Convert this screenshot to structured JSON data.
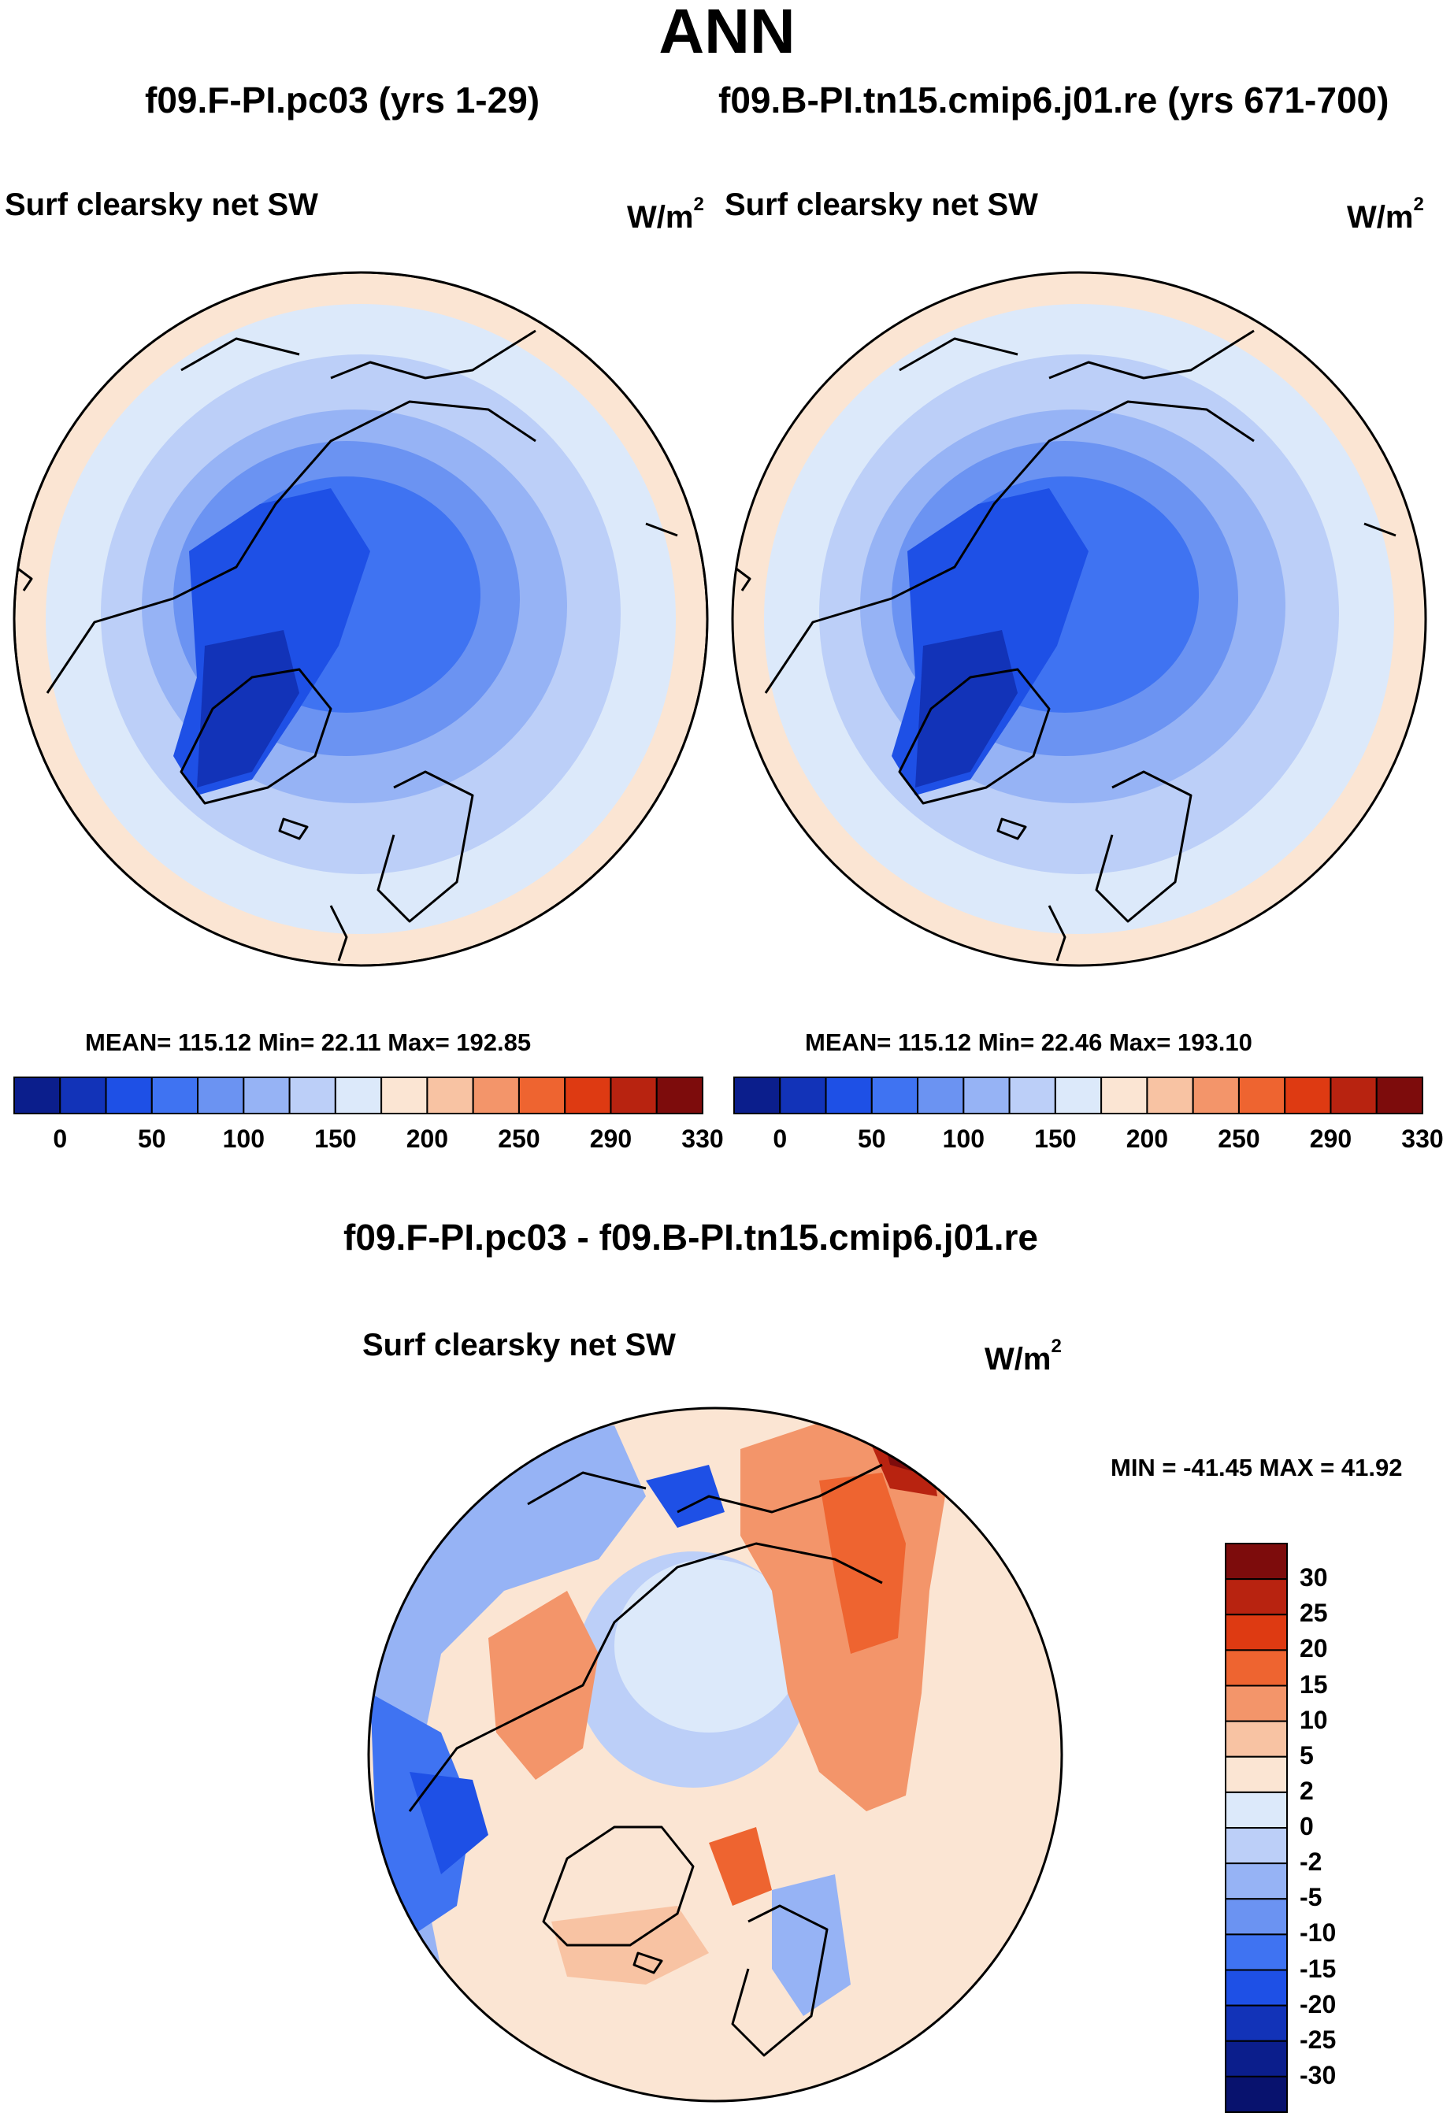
{
  "figure": {
    "title": "ANN",
    "diff_title": "f09.F-PI.pc03 - f09.B-PI.tn15.cmip6.j01.re"
  },
  "panels": [
    {
      "case_title": "f09.F-PI.pc03 (yrs 1-29)",
      "variable": "Surf clearsky net SW",
      "units_base": "W/m",
      "units_exp": "2",
      "stats": "MEAN= 115.12  Min=  22.11  Max= 192.85"
    },
    {
      "case_title": "f09.B-PI.tn15.cmip6.j01.re (yrs 671-700)",
      "variable": "Surf clearsky net SW",
      "units_base": "W/m",
      "units_exp": "2",
      "stats": "MEAN= 115.12  Min=  22.46  Max= 193.10"
    },
    {
      "variable": "Surf clearsky net SW",
      "units_base": "W/m",
      "units_exp": "2",
      "stats": "MIN = -41.45 MAX =  41.92"
    }
  ],
  "colorbars": {
    "field_labels": [
      "0",
      "50",
      "100",
      "150",
      "200",
      "250",
      "290",
      "330"
    ],
    "field_colors": [
      "#0b1e8c",
      "#1233b8",
      "#1e50e6",
      "#3f73f2",
      "#6b93f2",
      "#96b3f5",
      "#bccff8",
      "#dce9fa",
      "#fbe5d3",
      "#f8c3a3",
      "#f3956a",
      "#ee6430",
      "#de3a12",
      "#b82310",
      "#7d0c0c"
    ],
    "diff_labels": [
      "30",
      "25",
      "20",
      "15",
      "10",
      "5",
      "2",
      "0",
      "-2",
      "-5",
      "-10",
      "-15",
      "-20",
      "-25",
      "-30"
    ],
    "diff_colors": [
      "#7d0c0c",
      "#b82310",
      "#de3a12",
      "#ee6430",
      "#f3956a",
      "#f8c3a3",
      "#fbe5d3",
      "#dce9fa",
      "#bccff8",
      "#96b3f5",
      "#6b93f2",
      "#3f73f2",
      "#1e50e6",
      "#1233b8",
      "#0b1e8c",
      "#08126e"
    ]
  },
  "chart_data": [
    {
      "type": "heatmap",
      "projection": "north polar stereographic",
      "title": "f09.F-PI.pc03 (yrs 1-29)",
      "variable": "Surf clearsky net SW",
      "units": "W/m2",
      "mean": 115.12,
      "min": 22.11,
      "max": 192.85,
      "contour_levels": [
        0,
        25,
        50,
        75,
        100,
        125,
        150,
        175,
        200,
        225,
        250,
        270,
        290,
        310,
        330
      ]
    },
    {
      "type": "heatmap",
      "projection": "north polar stereographic",
      "title": "f09.B-PI.tn15.cmip6.j01.re (yrs 671-700)",
      "variable": "Surf clearsky net SW",
      "units": "W/m2",
      "mean": 115.12,
      "min": 22.46,
      "max": 193.1,
      "contour_levels": [
        0,
        25,
        50,
        75,
        100,
        125,
        150,
        175,
        200,
        225,
        250,
        270,
        290,
        310,
        330
      ]
    },
    {
      "type": "heatmap",
      "projection": "north polar stereographic",
      "title": "f09.F-PI.pc03 - f09.B-PI.tn15.cmip6.j01.re",
      "variable": "Surf clearsky net SW",
      "units": "W/m2",
      "min": -41.45,
      "max": 41.92,
      "contour_levels": [
        -30,
        -25,
        -20,
        -15,
        -10,
        -5,
        -2,
        0,
        2,
        5,
        10,
        15,
        20,
        25,
        30
      ]
    }
  ]
}
